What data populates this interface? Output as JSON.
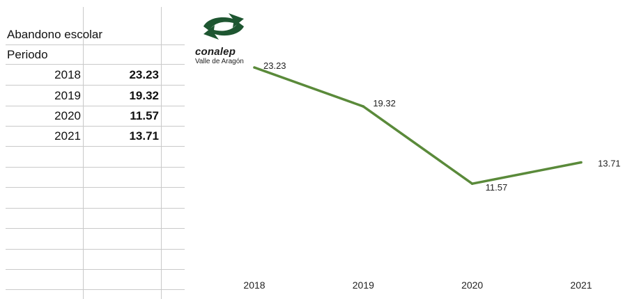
{
  "sheet": {
    "title": "Abandono escolar",
    "period_label": "Periodo",
    "rows": [
      {
        "year": "2018",
        "value": "23.23"
      },
      {
        "year": "2019",
        "value": "19.32"
      },
      {
        "year": "2020",
        "value": "11.57"
      },
      {
        "year": "2021",
        "value": "13.71"
      }
    ]
  },
  "logo": {
    "name": "conalep",
    "subtitle": "Valle de Aragón",
    "color": "#1e5631"
  },
  "chart_data": {
    "type": "line",
    "categories": [
      "2018",
      "2019",
      "2020",
      "2021"
    ],
    "series": [
      {
        "values": [
          23.23,
          19.32,
          11.57,
          13.71
        ],
        "color": "#5a8a3a"
      }
    ],
    "data_labels": [
      "23.23",
      "19.32",
      "11.57",
      "13.71"
    ],
    "title": "",
    "xlabel": "",
    "ylabel": "",
    "ylim": [
      0,
      30
    ],
    "grid": false,
    "legend": "none"
  }
}
